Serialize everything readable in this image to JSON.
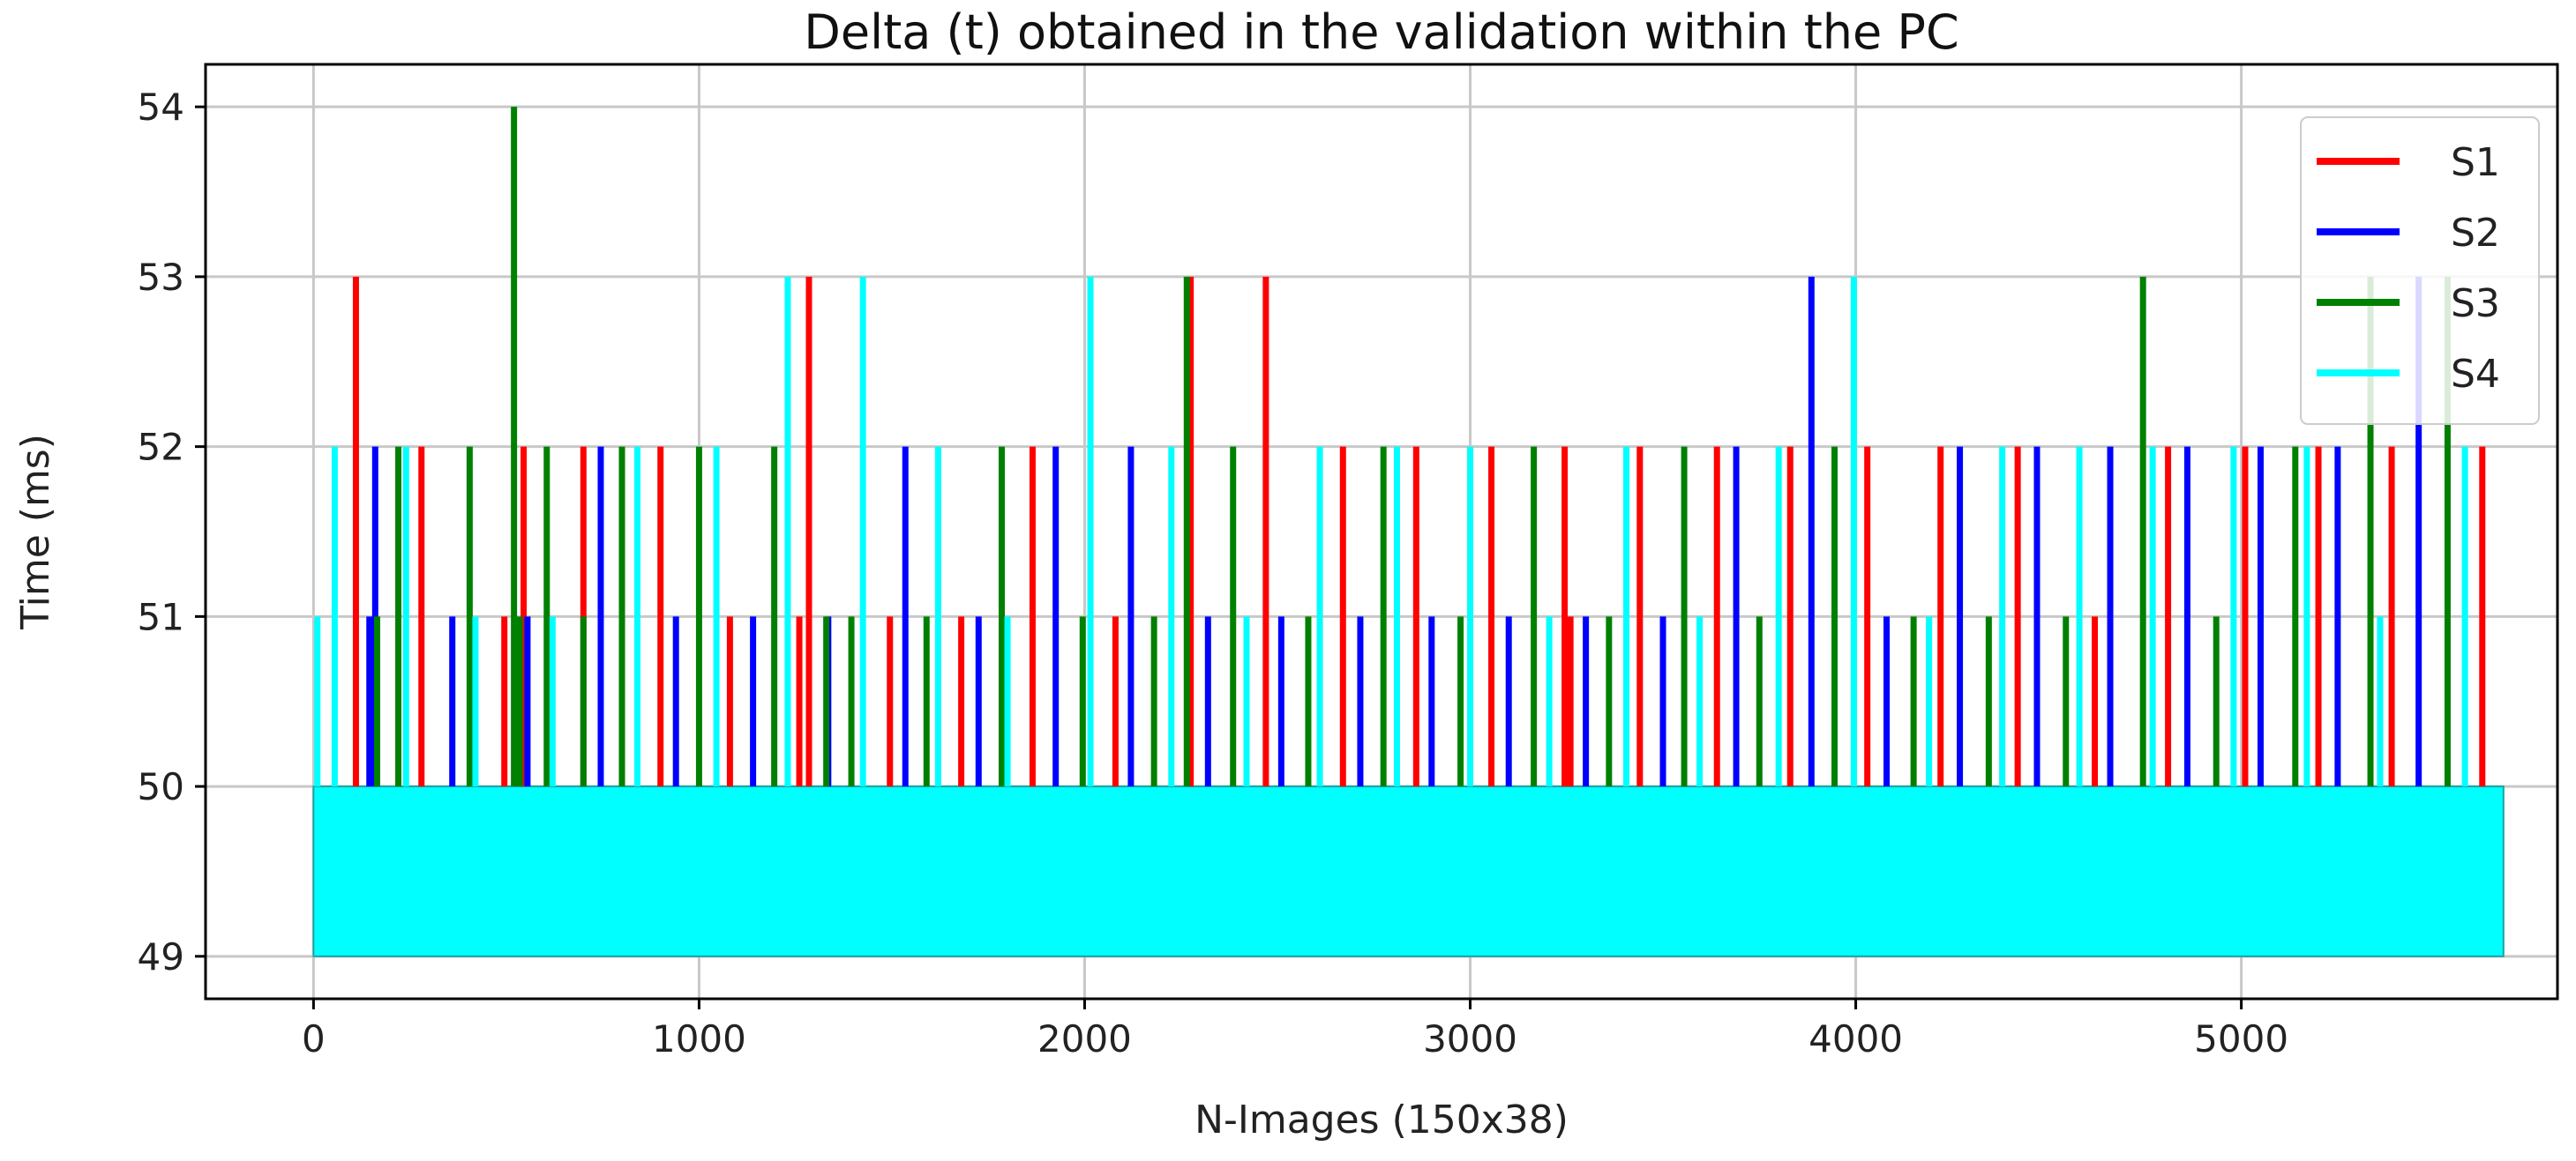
{
  "chart_data": {
    "type": "line",
    "title": "Delta (t) obtained in the validation within the PC",
    "xlabel": "N-Images (150x38)",
    "ylabel": "Time (ms)",
    "xlim": [
      -280,
      5820
    ],
    "ylim": [
      48.75,
      54.25
    ],
    "x_ticks": [
      0,
      1000,
      2000,
      3000,
      4000,
      5000
    ],
    "y_ticks": [
      49,
      50,
      51,
      52,
      53,
      54
    ],
    "grid": true,
    "legend_position": "upper right",
    "x_range": [
      0,
      5680
    ],
    "baseline_band": [
      49,
      50
    ],
    "series": [
      {
        "name": "S1",
        "color": "#ff0000",
        "spikes": [
          [
            110,
            53
          ],
          [
            280,
            52
          ],
          [
            495,
            51
          ],
          [
            545,
            52
          ],
          [
            700,
            52
          ],
          [
            900,
            52
          ],
          [
            1080,
            51
          ],
          [
            1260,
            51
          ],
          [
            1285,
            53
          ],
          [
            1495,
            51
          ],
          [
            1680,
            51
          ],
          [
            1865,
            52
          ],
          [
            2080,
            51
          ],
          [
            2275,
            53
          ],
          [
            2470,
            53
          ],
          [
            2670,
            52
          ],
          [
            2860,
            52
          ],
          [
            3055,
            52
          ],
          [
            3245,
            52
          ],
          [
            3260,
            51
          ],
          [
            3440,
            52
          ],
          [
            3640,
            52
          ],
          [
            3830,
            52
          ],
          [
            4030,
            52
          ],
          [
            4220,
            52
          ],
          [
            4420,
            52
          ],
          [
            4620,
            51
          ],
          [
            4810,
            52
          ],
          [
            5010,
            52
          ],
          [
            5200,
            52
          ],
          [
            5390,
            52
          ],
          [
            5625,
            52
          ]
        ]
      },
      {
        "name": "S2",
        "color": "#0000ff",
        "spikes": [
          [
            145,
            51
          ],
          [
            160,
            52
          ],
          [
            360,
            51
          ],
          [
            555,
            51
          ],
          [
            745,
            52
          ],
          [
            940,
            51
          ],
          [
            1140,
            51
          ],
          [
            1335,
            51
          ],
          [
            1535,
            52
          ],
          [
            1725,
            51
          ],
          [
            1925,
            52
          ],
          [
            2120,
            52
          ],
          [
            2320,
            51
          ],
          [
            2510,
            51
          ],
          [
            2715,
            51
          ],
          [
            2900,
            51
          ],
          [
            3100,
            51
          ],
          [
            3300,
            51
          ],
          [
            3500,
            51
          ],
          [
            3690,
            52
          ],
          [
            3885,
            53
          ],
          [
            4080,
            51
          ],
          [
            4270,
            52
          ],
          [
            4470,
            52
          ],
          [
            4660,
            52
          ],
          [
            4860,
            52
          ],
          [
            5050,
            52
          ],
          [
            5250,
            52
          ],
          [
            5460,
            53
          ]
        ]
      },
      {
        "name": "S3",
        "color": "#008000",
        "spikes": [
          [
            165,
            51
          ],
          [
            220,
            52
          ],
          [
            405,
            52
          ],
          [
            520,
            54
          ],
          [
            535,
            51
          ],
          [
            605,
            52
          ],
          [
            700,
            51
          ],
          [
            800,
            52
          ],
          [
            1000,
            52
          ],
          [
            1195,
            52
          ],
          [
            1330,
            51
          ],
          [
            1395,
            51
          ],
          [
            1590,
            51
          ],
          [
            1785,
            52
          ],
          [
            1995,
            51
          ],
          [
            2180,
            51
          ],
          [
            2265,
            53
          ],
          [
            2385,
            52
          ],
          [
            2580,
            51
          ],
          [
            2775,
            52
          ],
          [
            2975,
            51
          ],
          [
            3165,
            52
          ],
          [
            3360,
            51
          ],
          [
            3555,
            52
          ],
          [
            3750,
            51
          ],
          [
            3945,
            52
          ],
          [
            4150,
            51
          ],
          [
            4345,
            51
          ],
          [
            4545,
            51
          ],
          [
            4745,
            53
          ],
          [
            4935,
            51
          ],
          [
            5140,
            52
          ],
          [
            5335,
            53
          ],
          [
            5535,
            53
          ]
        ]
      },
      {
        "name": "S4",
        "color": "#00ffff",
        "spikes": [
          [
            10,
            51
          ],
          [
            55,
            52
          ],
          [
            240,
            52
          ],
          [
            420,
            51
          ],
          [
            620,
            51
          ],
          [
            840,
            52
          ],
          [
            1045,
            52
          ],
          [
            1230,
            53
          ],
          [
            1425,
            53
          ],
          [
            1620,
            52
          ],
          [
            1800,
            51
          ],
          [
            2015,
            53
          ],
          [
            2225,
            52
          ],
          [
            2420,
            51
          ],
          [
            2610,
            52
          ],
          [
            2810,
            52
          ],
          [
            3000,
            52
          ],
          [
            3205,
            51
          ],
          [
            3405,
            52
          ],
          [
            3595,
            51
          ],
          [
            3800,
            52
          ],
          [
            3995,
            53
          ],
          [
            4190,
            51
          ],
          [
            4380,
            52
          ],
          [
            4580,
            52
          ],
          [
            4770,
            52
          ],
          [
            4980,
            52
          ],
          [
            5170,
            52
          ],
          [
            5360,
            51
          ],
          [
            5580,
            52
          ]
        ]
      }
    ]
  }
}
